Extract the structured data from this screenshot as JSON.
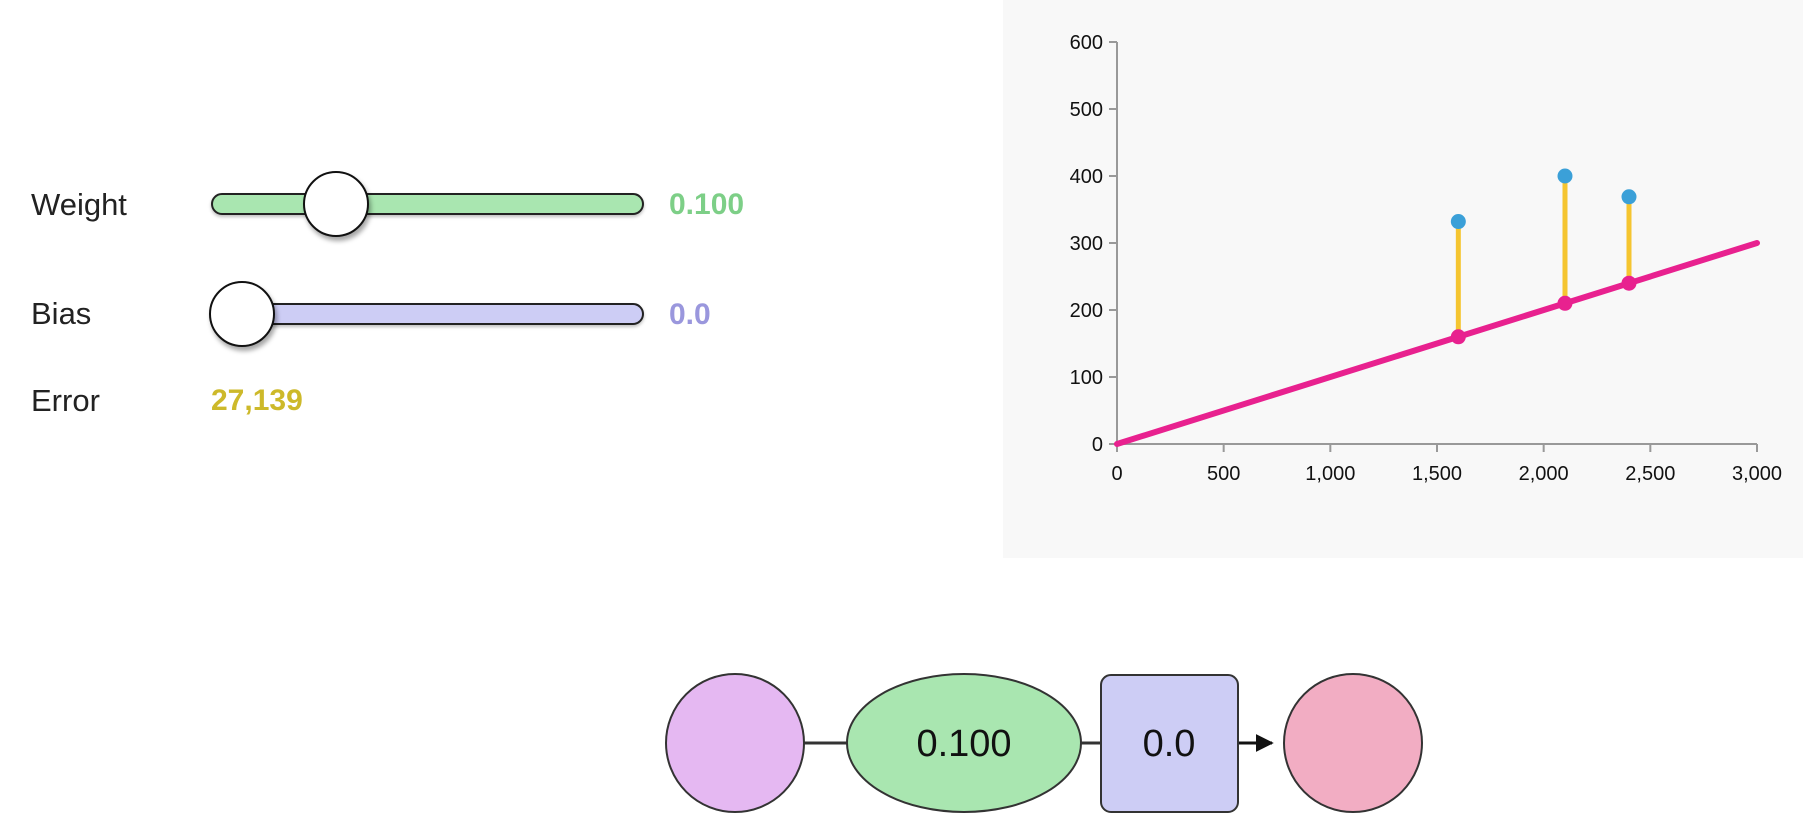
{
  "controls": {
    "weight": {
      "label": "Weight",
      "value": 0.1,
      "display": "0.100",
      "min": -0.2,
      "max": 1.0,
      "color": "#a9e6b0",
      "value_color": "#7dcf87"
    },
    "bias": {
      "label": "Bias",
      "value": 0.0,
      "display": "0.0",
      "min": 0.0,
      "max": 1.0,
      "color": "#cdcdf5",
      "value_color": "#9a97dd"
    },
    "error": {
      "label": "Error",
      "value": "27,139",
      "value_color": "#cdb92a"
    }
  },
  "chart_data": {
    "type": "scatter",
    "x_ticks": [
      "0",
      "500",
      "1,000",
      "1,500",
      "2,000",
      "2,500",
      "3,000"
    ],
    "y_ticks": [
      "0",
      "100",
      "200",
      "300",
      "400",
      "500",
      "600"
    ],
    "xlim": [
      0,
      3000
    ],
    "ylim": [
      0,
      600
    ],
    "points": [
      {
        "x": 1600,
        "y": 332
      },
      {
        "x": 2100,
        "y": 400
      },
      {
        "x": 2400,
        "y": 369
      }
    ],
    "line": {
      "slope": 0.1,
      "intercept": 0.0,
      "color": "#e8218f"
    },
    "point_color": "#3ba0d8",
    "residual_color": "#f5c530",
    "background": "#f8f8f8"
  },
  "diagram": {
    "input_color": "#e5b8f2",
    "weight": {
      "label": "0.100",
      "color": "#a9e6b0"
    },
    "bias": {
      "label": "0.0",
      "color": "#cdcdf5"
    },
    "output_color": "#f2adc3"
  }
}
